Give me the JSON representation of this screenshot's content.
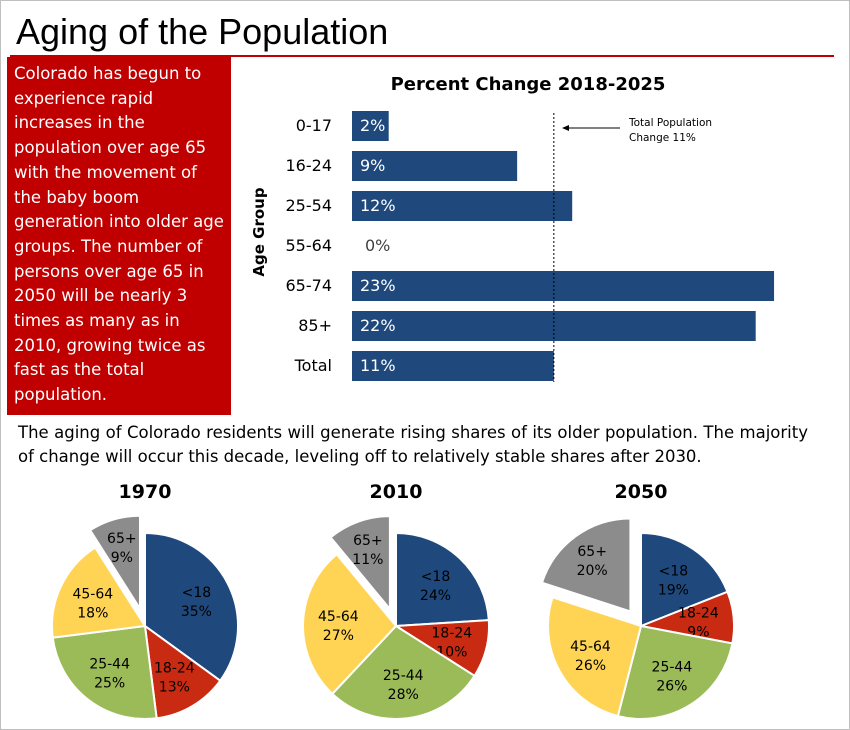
{
  "page": {
    "title": "Aging of the Population",
    "sidebar_text": "Colorado has begun to experience rapid increases in the population over age 65 with the movement of the baby boom generation into older age groups. The number of persons over age 65 in 2050 will be nearly 3 times as many as in 2010, growing twice as fast as the total population.",
    "summary": "The aging of Colorado residents will generate rising shares of its older population. The majority of change will occur this decade, leveling off to relatively stable shares after 2030."
  },
  "colors": {
    "accent_red": "#c00000",
    "bar": "#1f497d",
    "under18": "#1f497d",
    "age18_24": "#c82a12",
    "age25_44": "#9bbb59",
    "age45_64": "#ffd455",
    "age65plus": "#8c8c8c"
  },
  "chart_data": [
    {
      "type": "bar",
      "orientation": "horizontal",
      "title": "Percent Change 2018-2025",
      "ylabel": "Age Group",
      "categories": [
        "0-17",
        "16-24",
        "25-54",
        "55-64",
        "65-74",
        "85+",
        "Total"
      ],
      "values": [
        2,
        9,
        12,
        0,
        23,
        22,
        11
      ],
      "value_labels": [
        "2%",
        "9%",
        "12%",
        "0%",
        "23%",
        "22%",
        "11%"
      ],
      "xlim": [
        0,
        23
      ],
      "reference_line": {
        "value": 11,
        "style": "dashed"
      },
      "annotation": {
        "line1": "Total Population",
        "line2": "Change 11%"
      }
    },
    {
      "type": "pie",
      "title": "1970",
      "slices": [
        {
          "label": "<18",
          "value": 35,
          "value_label": "35%"
        },
        {
          "label": "18-24",
          "value": 13,
          "value_label": "13%"
        },
        {
          "label": "25-44",
          "value": 25,
          "value_label": "25%"
        },
        {
          "label": "45-64",
          "value": 18,
          "value_label": "18%"
        },
        {
          "label": "65+",
          "value": 9,
          "value_label": "9%",
          "exploded": true
        }
      ]
    },
    {
      "type": "pie",
      "title": "2010",
      "slices": [
        {
          "label": "<18",
          "value": 24,
          "value_label": "24%"
        },
        {
          "label": "18-24",
          "value": 10,
          "value_label": "10%"
        },
        {
          "label": "25-44",
          "value": 28,
          "value_label": "28%"
        },
        {
          "label": "45-64",
          "value": 27,
          "value_label": "27%"
        },
        {
          "label": "65+",
          "value": 11,
          "value_label": "11%",
          "exploded": true
        }
      ]
    },
    {
      "type": "pie",
      "title": "2050",
      "slices": [
        {
          "label": "<18",
          "value": 19,
          "value_label": "19%"
        },
        {
          "label": "18-24",
          "value": 9,
          "value_label": "9%"
        },
        {
          "label": "25-44",
          "value": 26,
          "value_label": "26%"
        },
        {
          "label": "45-64",
          "value": 26,
          "value_label": "26%"
        },
        {
          "label": "65+",
          "value": 20,
          "value_label": "20%",
          "exploded": true
        }
      ]
    }
  ]
}
